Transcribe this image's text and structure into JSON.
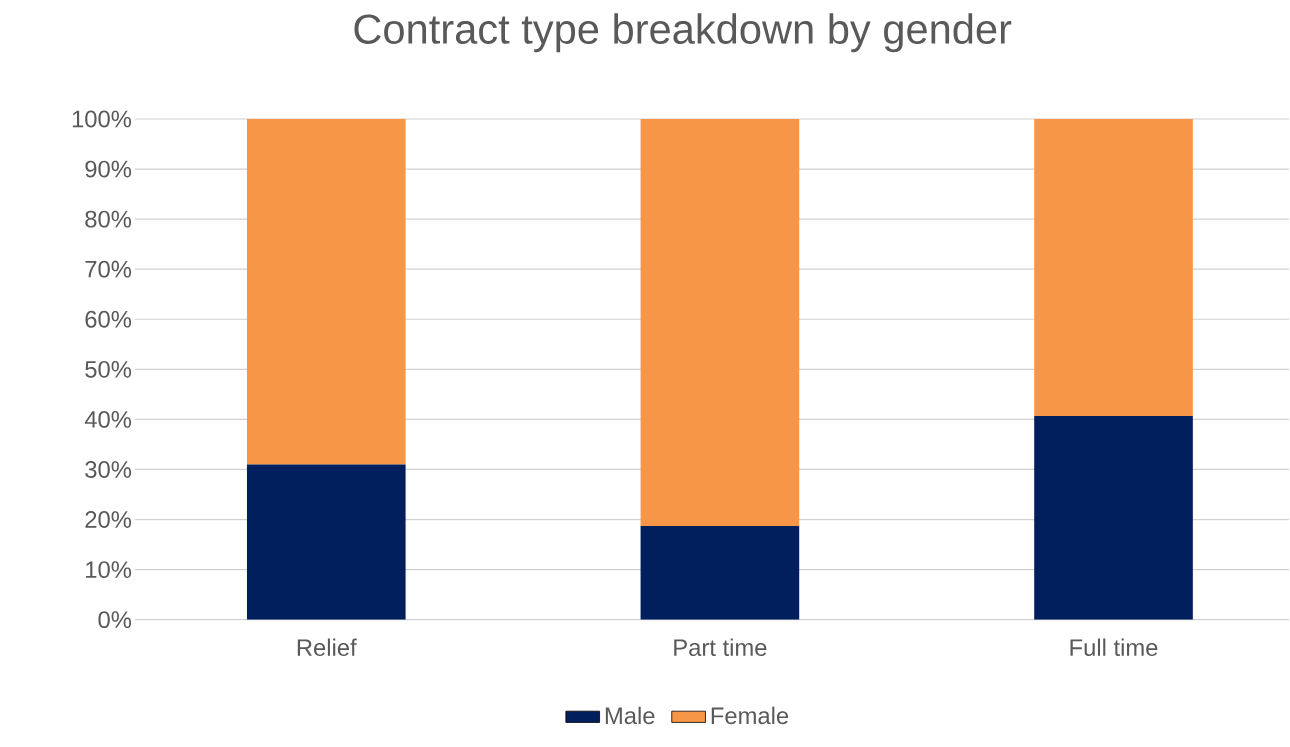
{
  "chart_data": {
    "type": "bar",
    "stacked": true,
    "title": "Contract type breakdown by gender",
    "categories": [
      "Relief",
      "Part time",
      "Full time"
    ],
    "series": [
      {
        "name": "Male",
        "color": "#001f5c",
        "values": [
          31.0,
          18.7,
          40.7
        ]
      },
      {
        "name": "Female",
        "color": "#f79646",
        "values": [
          69.0,
          81.3,
          59.3
        ]
      }
    ],
    "ylim": [
      0,
      100
    ],
    "yticks": [
      {
        "value": 0,
        "label": "0%"
      },
      {
        "value": 10,
        "label": "10%"
      },
      {
        "value": 20,
        "label": "20%"
      },
      {
        "value": 30,
        "label": "30%"
      },
      {
        "value": 40,
        "label": "40%"
      },
      {
        "value": 50,
        "label": "50%"
      },
      {
        "value": 60,
        "label": "60%"
      },
      {
        "value": 70,
        "label": "70%"
      },
      {
        "value": 80,
        "label": "80%"
      },
      {
        "value": 90,
        "label": "90%"
      },
      {
        "value": 100,
        "label": "100%"
      }
    ],
    "grid": "y",
    "legend": "bottom"
  }
}
